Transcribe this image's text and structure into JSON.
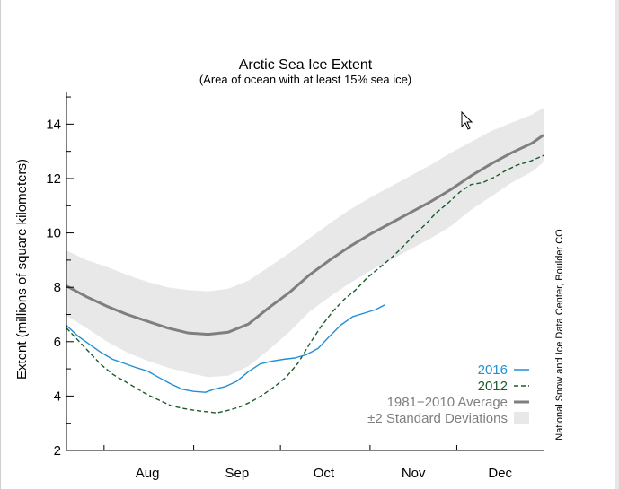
{
  "chart_data": {
    "type": "line",
    "title": "Arctic Sea Ice Extent",
    "subtitle": "(Area of ocean with at least 15% sea ice)",
    "ylabel": "Extent (millions of square kilometers)",
    "xlabel": "",
    "credit": "National Snow and Ice Data Center, Boulder CO",
    "ylim": [
      2,
      15.2
    ],
    "yticks": [
      2,
      4,
      6,
      8,
      10,
      12,
      14
    ],
    "xlim": [
      "Jul 19",
      "Dec 31"
    ],
    "months": [
      {
        "label": "Aug",
        "center": "Aug 16",
        "start": "Aug 1"
      },
      {
        "label": "Sep",
        "center": "Sep 16",
        "start": "Sep 1"
      },
      {
        "label": "Oct",
        "center": "Oct 16",
        "start": "Oct 1"
      },
      {
        "label": "Nov",
        "center": "Nov 16",
        "start": "Nov 1"
      },
      {
        "label": "Dec",
        "center": "Dec 16",
        "start": "Dec 1"
      }
    ],
    "grid": false,
    "legend_position": "bottom-right",
    "series": [
      {
        "name": "2016",
        "color": "#1e90d6",
        "style": "solid",
        "x": [
          "Jul 19",
          "Jul 23",
          "Jul 27",
          "Jul 31",
          "Aug 4",
          "Aug 8",
          "Aug 12",
          "Aug 16",
          "Aug 20",
          "Aug 24",
          "Aug 28",
          "Sep 1",
          "Sep 5",
          "Sep 8",
          "Sep 12",
          "Sep 16",
          "Sep 20",
          "Sep 24",
          "Sep 28",
          "Oct 2",
          "Oct 6",
          "Oct 10",
          "Oct 14",
          "Oct 18",
          "Oct 22",
          "Oct 26",
          "Oct 30",
          "Nov 3",
          "Nov 6"
        ],
        "y": [
          6.6,
          6.2,
          5.9,
          5.6,
          5.35,
          5.2,
          5.05,
          4.92,
          4.68,
          4.45,
          4.25,
          4.17,
          4.14,
          4.25,
          4.35,
          4.55,
          4.9,
          5.18,
          5.28,
          5.35,
          5.4,
          5.52,
          5.75,
          6.2,
          6.62,
          6.92,
          7.05,
          7.18,
          7.35
        ]
      },
      {
        "name": "2012",
        "color": "#1a5c2a",
        "style": "dashed",
        "x": [
          "Jul 19",
          "Jul 23",
          "Jul 27",
          "Jul 31",
          "Aug 4",
          "Aug 8",
          "Aug 12",
          "Aug 16",
          "Aug 20",
          "Aug 24",
          "Aug 28",
          "Sep 1",
          "Sep 5",
          "Sep 9",
          "Sep 13",
          "Sep 17",
          "Sep 21",
          "Sep 25",
          "Sep 29",
          "Oct 3",
          "Oct 7",
          "Oct 11",
          "Oct 15",
          "Oct 19",
          "Oct 23",
          "Oct 27",
          "Oct 31",
          "Nov 4",
          "Nov 8",
          "Nov 12",
          "Nov 16",
          "Nov 20",
          "Nov 24",
          "Nov 28",
          "Dec 2",
          "Dec 6",
          "Dec 10",
          "Dec 14",
          "Dec 18",
          "Dec 22",
          "Dec 26",
          "Dec 31"
        ],
        "y": [
          6.5,
          6.05,
          5.6,
          5.15,
          4.8,
          4.55,
          4.3,
          4.05,
          3.85,
          3.65,
          3.55,
          3.48,
          3.43,
          3.38,
          3.48,
          3.6,
          3.8,
          4.05,
          4.35,
          4.7,
          5.2,
          5.9,
          6.55,
          7.1,
          7.55,
          7.9,
          8.35,
          8.7,
          9.05,
          9.45,
          9.9,
          10.3,
          10.75,
          11.1,
          11.5,
          11.78,
          11.85,
          12.05,
          12.3,
          12.5,
          12.62,
          12.85
        ]
      },
      {
        "name": "1981−2010 Average",
        "color": "#7f7f7f",
        "style": "solid-thick",
        "x": [
          "Jul 19",
          "Jul 26",
          "Aug 2",
          "Aug 9",
          "Aug 16",
          "Aug 23",
          "Aug 30",
          "Sep 6",
          "Sep 13",
          "Sep 20",
          "Sep 27",
          "Oct 4",
          "Oct 11",
          "Oct 18",
          "Oct 25",
          "Nov 1",
          "Nov 8",
          "Nov 15",
          "Nov 22",
          "Nov 29",
          "Dec 6",
          "Dec 13",
          "Dec 20",
          "Dec 27",
          "Dec 31"
        ],
        "y": [
          8.05,
          7.65,
          7.3,
          7.0,
          6.75,
          6.5,
          6.32,
          6.27,
          6.35,
          6.65,
          7.25,
          7.8,
          8.45,
          9.0,
          9.5,
          9.95,
          10.35,
          10.75,
          11.15,
          11.6,
          12.1,
          12.55,
          12.95,
          13.3,
          13.6
        ]
      }
    ],
    "bands": [
      {
        "name": "±2 Standard Deviations",
        "color": "#e8e8e8",
        "x": [
          "Jul 19",
          "Jul 26",
          "Aug 2",
          "Aug 9",
          "Aug 16",
          "Aug 23",
          "Aug 30",
          "Sep 6",
          "Sep 13",
          "Sep 20",
          "Sep 27",
          "Oct 4",
          "Oct 11",
          "Oct 18",
          "Oct 25",
          "Nov 1",
          "Nov 8",
          "Nov 15",
          "Nov 22",
          "Nov 29",
          "Dec 6",
          "Dec 13",
          "Dec 20",
          "Dec 27",
          "Dec 31"
        ],
        "upper": [
          9.35,
          9.0,
          8.75,
          8.45,
          8.2,
          8.0,
          7.9,
          7.85,
          7.95,
          8.25,
          8.75,
          9.25,
          9.8,
          10.35,
          10.85,
          11.3,
          11.7,
          12.1,
          12.5,
          12.95,
          13.35,
          13.75,
          14.05,
          14.35,
          14.6
        ],
        "lower": [
          6.95,
          6.5,
          6.0,
          5.6,
          5.3,
          5.05,
          4.85,
          4.7,
          4.75,
          5.1,
          5.7,
          6.35,
          7.1,
          7.65,
          8.15,
          8.6,
          9.0,
          9.4,
          9.8,
          10.25,
          10.85,
          11.35,
          11.85,
          12.25,
          12.6
        ]
      }
    ],
    "legend": [
      {
        "label": "2016",
        "color": "#1e90d6",
        "marker": "line"
      },
      {
        "label": "2012",
        "color": "#1a5c2a",
        "marker": "dashed"
      },
      {
        "label": "1981−2010 Average",
        "color": "#7f7f7f",
        "marker": "thick-line"
      },
      {
        "label": "±2 Standard Deviations",
        "color": "#7f7f7f",
        "marker": "swatch",
        "swatch_color": "#e8e8e8"
      }
    ]
  }
}
